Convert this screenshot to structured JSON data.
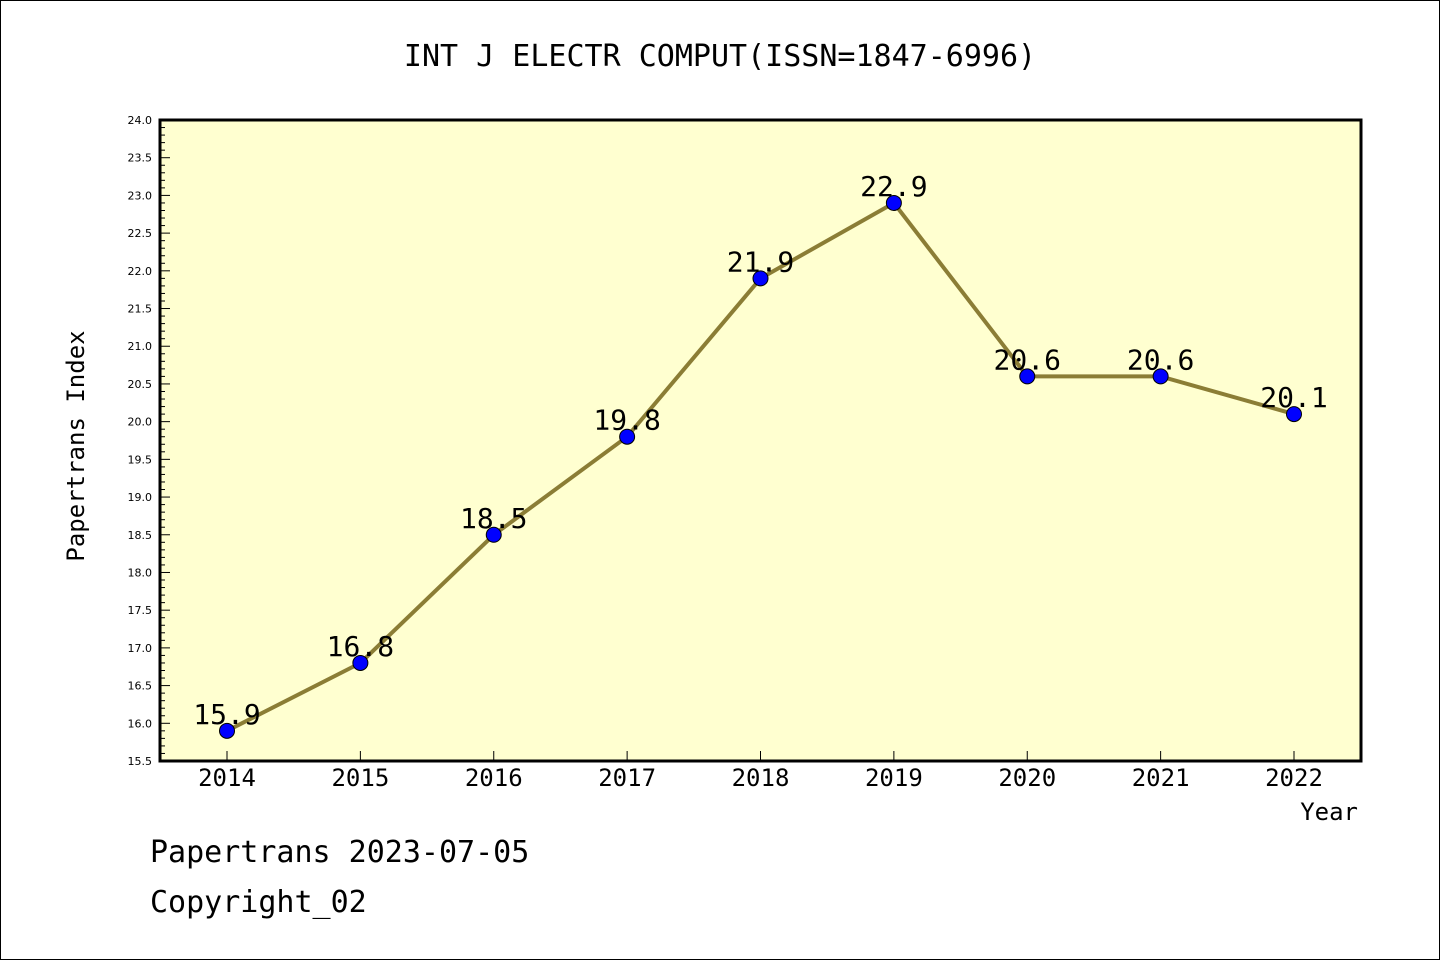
{
  "chart_data": {
    "type": "line",
    "title": "INT J ELECTR COMPUT(ISSN=1847-6996)",
    "xlabel": "Year",
    "ylabel": "Papertrans Index",
    "categories": [
      "2014",
      "2015",
      "2016",
      "2017",
      "2018",
      "2019",
      "2020",
      "2021",
      "2022"
    ],
    "series": [
      {
        "values": [
          15.9,
          16.8,
          18.5,
          19.8,
          21.9,
          22.9,
          20.6,
          20.6,
          20.1
        ],
        "labels": [
          "15.9",
          "16.8",
          "18.5",
          "19.8",
          "21.9",
          "22.9",
          "20.6",
          "20.6",
          "20.1"
        ]
      }
    ],
    "ylim": [
      15.5,
      24.0
    ],
    "yticks": [
      "15.5",
      "16.0",
      "16.5",
      "17.0",
      "17.5",
      "18.0",
      "18.5",
      "19.0",
      "19.5",
      "20.0",
      "20.5",
      "21.0",
      "21.5",
      "22.0",
      "22.5",
      "23.0",
      "23.5",
      "24.0"
    ],
    "grid": false,
    "colors": {
      "plot_background": "#ffffd0",
      "line": "#8b7d35",
      "marker": "#0000ff"
    }
  },
  "footer": {
    "date_line": "Papertrans 2023-07-05",
    "copyright_line": "Copyright_02"
  }
}
